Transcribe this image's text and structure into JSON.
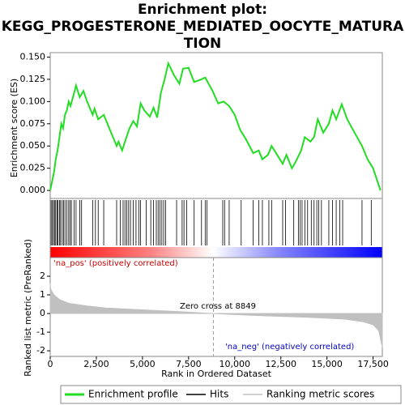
{
  "chart_data": [
    {
      "type": "line",
      "title": [
        "Enrichment plot:",
        "KEGG_PROGESTERONE_MEDIATED_OOCYTE_MATURA",
        "TION"
      ],
      "ylabel": "Enrichment score (ES)",
      "xlim": [
        0,
        18000
      ],
      "ylim": [
        -0.009,
        0.155
      ],
      "yticks": [
        {
          "value": 0,
          "label": "0.000"
        },
        {
          "value": 0.025,
          "label": "0.025"
        },
        {
          "value": 0.05,
          "label": "0.050"
        },
        {
          "value": 0.075,
          "label": "0.075"
        },
        {
          "value": 0.1,
          "label": "0.100"
        },
        {
          "value": 0.125,
          "label": "0.125"
        },
        {
          "value": 0.15,
          "label": "0.150"
        }
      ],
      "series": [
        {
          "name": "Enrichment profile",
          "color": "#22dd22",
          "x": [
            0,
            100,
            200,
            300,
            400,
            500,
            600,
            700,
            800,
            900,
            1000,
            1100,
            1300,
            1400,
            1600,
            1800,
            2000,
            2300,
            2400,
            2600,
            2900,
            3200,
            3600,
            3700,
            3900,
            4100,
            4300,
            4500,
            4700,
            4900,
            5100,
            5400,
            5600,
            5800,
            6000,
            6200,
            6400,
            6700,
            7000,
            7200,
            7500,
            7800,
            8200,
            8400,
            8800,
            9100,
            9400,
            9700,
            10000,
            10300,
            10600,
            11000,
            11300,
            11500,
            11800,
            12000,
            12300,
            12600,
            12800,
            13100,
            13300,
            13600,
            13800,
            14100,
            14300,
            14500,
            14800,
            15100,
            15300,
            15500,
            15800,
            16100,
            16500,
            16900,
            17200,
            17500,
            17900
          ],
          "values": [
            0,
            0.01,
            0.02,
            0.035,
            0.045,
            0.06,
            0.075,
            0.07,
            0.085,
            0.09,
            0.1,
            0.095,
            0.11,
            0.118,
            0.105,
            0.112,
            0.1,
            0.085,
            0.092,
            0.08,
            0.085,
            0.07,
            0.05,
            0.055,
            0.045,
            0.058,
            0.07,
            0.078,
            0.072,
            0.098,
            0.09,
            0.083,
            0.093,
            0.082,
            0.11,
            0.125,
            0.143,
            0.13,
            0.12,
            0.137,
            0.138,
            0.122,
            0.125,
            0.127,
            0.112,
            0.098,
            0.1,
            0.095,
            0.085,
            0.068,
            0.058,
            0.042,
            0.045,
            0.035,
            0.04,
            0.05,
            0.04,
            0.03,
            0.04,
            0.025,
            0.032,
            0.045,
            0.06,
            0.055,
            0.06,
            0.08,
            0.065,
            0.075,
            0.09,
            0.08,
            0.097,
            0.08,
            0.065,
            0.05,
            0.035,
            0.025,
            0
          ]
        }
      ]
    },
    {
      "type": "rug",
      "xlim": [
        0,
        18000
      ],
      "series": [
        {
          "name": "Hits",
          "color": "#000000",
          "x": [
            50,
            120,
            180,
            250,
            300,
            380,
            420,
            500,
            560,
            650,
            720,
            800,
            900,
            1000,
            1080,
            1150,
            1300,
            1400,
            1600,
            1700,
            2300,
            2450,
            2600,
            2900,
            3600,
            3800,
            3950,
            4050,
            4150,
            4250,
            4350,
            4500,
            4650,
            4800,
            4900,
            5200,
            5450,
            5600,
            5750,
            5850,
            5950,
            6050,
            6150,
            6250,
            6850,
            7150,
            7250,
            7400,
            7800,
            8200,
            8400,
            8500,
            9350,
            9450,
            9700,
            10350,
            11000,
            11300,
            11500,
            11850,
            12000,
            12600,
            12750,
            13200,
            13450,
            13550,
            13650,
            13800,
            13950,
            14150,
            14300,
            14450,
            14550,
            14700,
            15100,
            15300,
            15500,
            15700,
            15850,
            16900,
            17400
          ]
        }
      ]
    },
    {
      "type": "area",
      "ylabel": "Ranked list metric (PreRanked)",
      "xlabel": "Rank in Ordered Dataset",
      "xlim": [
        0,
        18000
      ],
      "ylim": [
        -2.3,
        3.0
      ],
      "xticks": [
        0,
        {
          "value": 2500,
          "label": "2,500"
        },
        {
          "value": 5000,
          "label": "5,000"
        },
        {
          "value": 7500,
          "label": "7,500"
        },
        {
          "value": 10000,
          "label": "10,000"
        },
        {
          "value": 12500,
          "label": "12,500"
        },
        {
          "value": 15000,
          "label": "15,000"
        },
        {
          "value": 17500,
          "label": "17,500"
        }
      ],
      "yticks": [
        -2,
        -1,
        0,
        1,
        2
      ],
      "zero_cross": 8849,
      "annotations": [
        "Zero cross at 8849",
        "'na_pos' (positively correlated)",
        "'na_neg' (negatively correlated)"
      ],
      "series": [
        {
          "name": "Ranking metric scores",
          "color": "#c0c0c0",
          "x": [
            0,
            30,
            200,
            500,
            1000,
            2000,
            3000,
            5000,
            7000,
            8849,
            11000,
            14000,
            16000,
            17000,
            17500,
            17800,
            18000
          ],
          "values": [
            1.6,
            1.3,
            1.0,
            0.75,
            0.55,
            0.4,
            0.3,
            0.2,
            0.1,
            0,
            -0.1,
            -0.2,
            -0.3,
            -0.45,
            -0.6,
            -0.9,
            -1.8
          ]
        }
      ]
    }
  ]
}
